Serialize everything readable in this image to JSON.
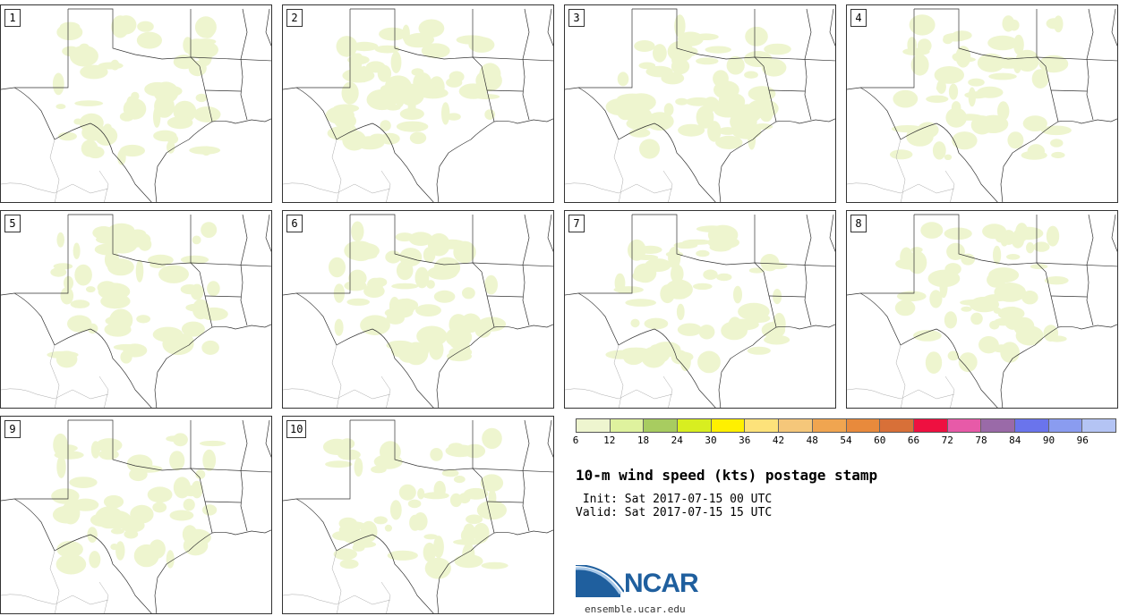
{
  "panels": [
    "1",
    "2",
    "3",
    "4",
    "5",
    "6",
    "7",
    "8",
    "9",
    "10"
  ],
  "colorbar": {
    "colors": [
      "#eef5cf",
      "#dff29e",
      "#a8cc60",
      "#d8ee20",
      "#fff000",
      "#fde27a",
      "#f5c77a",
      "#f0a550",
      "#e88a3c",
      "#d87038",
      "#ee1040",
      "#e75aa8",
      "#9a6aa8",
      "#6a74ec",
      "#8a9cf0",
      "#b4c4f4"
    ],
    "ticks": [
      "6",
      "12",
      "18",
      "24",
      "30",
      "36",
      "42",
      "48",
      "54",
      "60",
      "66",
      "72",
      "78",
      "84",
      "90",
      "96"
    ]
  },
  "title": "10-m wind speed (kts) postage stamp",
  "init": " Init: Sat 2017-07-15 00 UTC",
  "valid": "Valid: Sat 2017-07-15 15 UTC",
  "logo": {
    "text": "NCAR",
    "url": "ensemble.ucar.edu"
  },
  "map": {
    "fill_color": "#eef5cf",
    "line_color": "#333333"
  }
}
